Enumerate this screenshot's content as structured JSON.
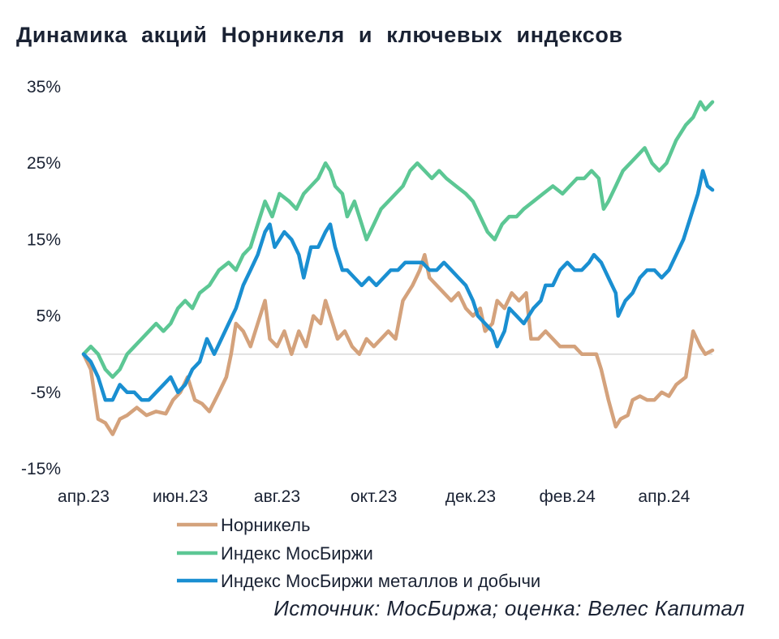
{
  "chart_data": {
    "type": "line",
    "title": "Динамика акций Норникеля и ключевых индексов",
    "xlabel": "",
    "ylabel": "",
    "ylim": [
      -15,
      35
    ],
    "y_ticks": [
      "35%",
      "25%",
      "15%",
      "5%",
      "-5%",
      "-15%"
    ],
    "y_tick_values": [
      35,
      25,
      15,
      5,
      -5,
      -15
    ],
    "x_ticks": [
      "апр.23",
      "июн.23",
      "авг.23",
      "окт.23",
      "дек.23",
      "фев.24",
      "апр.24"
    ],
    "x_tick_positions": [
      0,
      2,
      4,
      6,
      8,
      10,
      12
    ],
    "baseline": 0,
    "legend_position": "bottom",
    "series": [
      {
        "name": "Норникель",
        "color": "#d4a27c",
        "points": [
          [
            0,
            0
          ],
          [
            0.15,
            -2
          ],
          [
            0.3,
            -8.5
          ],
          [
            0.45,
            -9
          ],
          [
            0.6,
            -10.5
          ],
          [
            0.75,
            -8.5
          ],
          [
            0.9,
            -8
          ],
          [
            1.1,
            -7
          ],
          [
            1.3,
            -8
          ],
          [
            1.5,
            -7.5
          ],
          [
            1.7,
            -7.8
          ],
          [
            1.85,
            -6
          ],
          [
            2.0,
            -5
          ],
          [
            2.15,
            -3
          ],
          [
            2.3,
            -6
          ],
          [
            2.45,
            -6.5
          ],
          [
            2.6,
            -7.5
          ],
          [
            2.8,
            -5
          ],
          [
            2.95,
            -3
          ],
          [
            3.05,
            0
          ],
          [
            3.15,
            4
          ],
          [
            3.3,
            3
          ],
          [
            3.45,
            1
          ],
          [
            3.6,
            4
          ],
          [
            3.75,
            7
          ],
          [
            3.85,
            2
          ],
          [
            4.0,
            1
          ],
          [
            4.15,
            3
          ],
          [
            4.3,
            0
          ],
          [
            4.45,
            3
          ],
          [
            4.6,
            1
          ],
          [
            4.75,
            5
          ],
          [
            4.9,
            4
          ],
          [
            5.0,
            7
          ],
          [
            5.1,
            5
          ],
          [
            5.25,
            2
          ],
          [
            5.4,
            3
          ],
          [
            5.55,
            1
          ],
          [
            5.7,
            0
          ],
          [
            5.85,
            2
          ],
          [
            6.0,
            1
          ],
          [
            6.15,
            2
          ],
          [
            6.3,
            3
          ],
          [
            6.45,
            2
          ],
          [
            6.6,
            7
          ],
          [
            6.8,
            9
          ],
          [
            6.95,
            11
          ],
          [
            7.05,
            13
          ],
          [
            7.15,
            10
          ],
          [
            7.3,
            9
          ],
          [
            7.45,
            8
          ],
          [
            7.6,
            7
          ],
          [
            7.75,
            8
          ],
          [
            7.9,
            6
          ],
          [
            8.05,
            5
          ],
          [
            8.2,
            6
          ],
          [
            8.3,
            3
          ],
          [
            8.45,
            4
          ],
          [
            8.55,
            7
          ],
          [
            8.7,
            6
          ],
          [
            8.85,
            8
          ],
          [
            9.0,
            7
          ],
          [
            9.15,
            8
          ],
          [
            9.25,
            2
          ],
          [
            9.4,
            2
          ],
          [
            9.55,
            3
          ],
          [
            9.7,
            2
          ],
          [
            9.85,
            1
          ],
          [
            10.0,
            1
          ],
          [
            10.15,
            1
          ],
          [
            10.3,
            0
          ],
          [
            10.45,
            0
          ],
          [
            10.6,
            0
          ],
          [
            10.7,
            -2
          ],
          [
            10.85,
            -6
          ],
          [
            11.0,
            -9.5
          ],
          [
            11.1,
            -8.5
          ],
          [
            11.25,
            -8
          ],
          [
            11.35,
            -6
          ],
          [
            11.5,
            -5.5
          ],
          [
            11.65,
            -6
          ],
          [
            11.8,
            -6
          ],
          [
            11.95,
            -5
          ],
          [
            12.1,
            -5.5
          ],
          [
            12.25,
            -4
          ],
          [
            12.45,
            -3
          ],
          [
            12.6,
            3
          ],
          [
            12.75,
            1
          ],
          [
            12.85,
            0
          ],
          [
            13.0,
            0.5
          ]
        ]
      },
      {
        "name": "Индекс МосБиржи",
        "color": "#5cc794",
        "points": [
          [
            0,
            0
          ],
          [
            0.15,
            1
          ],
          [
            0.3,
            0
          ],
          [
            0.45,
            -2
          ],
          [
            0.6,
            -3
          ],
          [
            0.75,
            -2
          ],
          [
            0.9,
            0
          ],
          [
            1.05,
            1
          ],
          [
            1.2,
            2
          ],
          [
            1.35,
            3
          ],
          [
            1.5,
            4
          ],
          [
            1.65,
            3
          ],
          [
            1.8,
            4
          ],
          [
            1.95,
            6
          ],
          [
            2.1,
            7
          ],
          [
            2.25,
            6
          ],
          [
            2.4,
            8
          ],
          [
            2.6,
            9
          ],
          [
            2.8,
            11
          ],
          [
            3.0,
            12
          ],
          [
            3.15,
            11
          ],
          [
            3.3,
            13
          ],
          [
            3.45,
            14
          ],
          [
            3.6,
            17
          ],
          [
            3.75,
            20
          ],
          [
            3.9,
            18
          ],
          [
            4.05,
            21
          ],
          [
            4.25,
            20
          ],
          [
            4.4,
            19
          ],
          [
            4.55,
            21
          ],
          [
            4.7,
            22
          ],
          [
            4.85,
            23
          ],
          [
            5.0,
            25
          ],
          [
            5.1,
            24
          ],
          [
            5.2,
            22
          ],
          [
            5.35,
            21
          ],
          [
            5.45,
            18
          ],
          [
            5.6,
            20
          ],
          [
            5.75,
            17
          ],
          [
            5.85,
            15
          ],
          [
            6.0,
            17
          ],
          [
            6.15,
            19
          ],
          [
            6.3,
            20
          ],
          [
            6.45,
            21
          ],
          [
            6.6,
            22
          ],
          [
            6.75,
            24
          ],
          [
            6.9,
            25
          ],
          [
            7.05,
            24
          ],
          [
            7.2,
            23
          ],
          [
            7.35,
            24
          ],
          [
            7.5,
            23
          ],
          [
            7.7,
            22
          ],
          [
            7.9,
            21
          ],
          [
            8.05,
            20
          ],
          [
            8.2,
            18
          ],
          [
            8.35,
            16
          ],
          [
            8.5,
            15
          ],
          [
            8.65,
            17
          ],
          [
            8.8,
            18
          ],
          [
            8.95,
            18
          ],
          [
            9.1,
            19
          ],
          [
            9.3,
            20
          ],
          [
            9.5,
            21
          ],
          [
            9.7,
            22
          ],
          [
            9.9,
            21
          ],
          [
            10.05,
            22
          ],
          [
            10.2,
            23
          ],
          [
            10.35,
            23
          ],
          [
            10.5,
            24
          ],
          [
            10.65,
            23
          ],
          [
            10.75,
            19
          ],
          [
            10.85,
            20
          ],
          [
            11.0,
            22
          ],
          [
            11.15,
            24
          ],
          [
            11.3,
            25
          ],
          [
            11.45,
            26
          ],
          [
            11.6,
            27
          ],
          [
            11.75,
            25
          ],
          [
            11.9,
            24
          ],
          [
            12.05,
            25
          ],
          [
            12.25,
            28
          ],
          [
            12.45,
            30
          ],
          [
            12.6,
            31
          ],
          [
            12.75,
            33
          ],
          [
            12.85,
            32
          ],
          [
            13.0,
            33
          ]
        ]
      },
      {
        "name": "Индекс МосБиржи металлов и добычи",
        "color": "#1a8fd1",
        "points": [
          [
            0,
            0
          ],
          [
            0.15,
            -1
          ],
          [
            0.3,
            -3
          ],
          [
            0.45,
            -6
          ],
          [
            0.6,
            -6
          ],
          [
            0.75,
            -4
          ],
          [
            0.9,
            -5
          ],
          [
            1.05,
            -5
          ],
          [
            1.2,
            -6
          ],
          [
            1.35,
            -6
          ],
          [
            1.5,
            -5
          ],
          [
            1.65,
            -4
          ],
          [
            1.8,
            -3
          ],
          [
            1.95,
            -5
          ],
          [
            2.1,
            -4
          ],
          [
            2.25,
            -2
          ],
          [
            2.4,
            -1
          ],
          [
            2.55,
            2
          ],
          [
            2.7,
            0
          ],
          [
            2.85,
            2
          ],
          [
            3.0,
            4
          ],
          [
            3.15,
            6
          ],
          [
            3.3,
            9
          ],
          [
            3.45,
            11
          ],
          [
            3.6,
            13
          ],
          [
            3.75,
            16
          ],
          [
            3.85,
            17
          ],
          [
            3.95,
            14
          ],
          [
            4.05,
            15
          ],
          [
            4.15,
            16
          ],
          [
            4.3,
            15
          ],
          [
            4.45,
            13
          ],
          [
            4.55,
            10
          ],
          [
            4.7,
            14
          ],
          [
            4.85,
            14
          ],
          [
            5.0,
            16
          ],
          [
            5.1,
            17
          ],
          [
            5.2,
            14
          ],
          [
            5.35,
            11
          ],
          [
            5.45,
            11
          ],
          [
            5.6,
            10
          ],
          [
            5.75,
            9
          ],
          [
            5.9,
            10
          ],
          [
            6.05,
            9
          ],
          [
            6.2,
            10
          ],
          [
            6.35,
            11
          ],
          [
            6.5,
            11
          ],
          [
            6.65,
            12
          ],
          [
            6.85,
            12
          ],
          [
            7.0,
            12
          ],
          [
            7.15,
            11
          ],
          [
            7.3,
            11
          ],
          [
            7.45,
            12
          ],
          [
            7.6,
            11
          ],
          [
            7.75,
            10
          ],
          [
            7.9,
            9
          ],
          [
            8.05,
            7
          ],
          [
            8.15,
            5
          ],
          [
            8.3,
            4
          ],
          [
            8.45,
            3
          ],
          [
            8.55,
            1
          ],
          [
            8.7,
            3
          ],
          [
            8.8,
            6
          ],
          [
            8.95,
            5
          ],
          [
            9.1,
            4
          ],
          [
            9.3,
            6
          ],
          [
            9.45,
            7
          ],
          [
            9.55,
            9
          ],
          [
            9.7,
            9
          ],
          [
            9.85,
            11
          ],
          [
            10.0,
            12
          ],
          [
            10.15,
            11
          ],
          [
            10.3,
            11
          ],
          [
            10.45,
            12
          ],
          [
            10.55,
            13
          ],
          [
            10.7,
            12
          ],
          [
            10.85,
            10
          ],
          [
            11.0,
            8
          ],
          [
            11.05,
            5
          ],
          [
            11.2,
            7
          ],
          [
            11.35,
            8
          ],
          [
            11.5,
            10
          ],
          [
            11.65,
            11
          ],
          [
            11.8,
            11
          ],
          [
            11.95,
            10
          ],
          [
            12.1,
            11
          ],
          [
            12.25,
            13
          ],
          [
            12.4,
            15
          ],
          [
            12.55,
            18
          ],
          [
            12.7,
            21
          ],
          [
            12.8,
            24
          ],
          [
            12.9,
            22
          ],
          [
            13.0,
            21.5
          ]
        ]
      }
    ]
  },
  "source": "Источник: МосБиржа; оценка: Велес Капитал"
}
